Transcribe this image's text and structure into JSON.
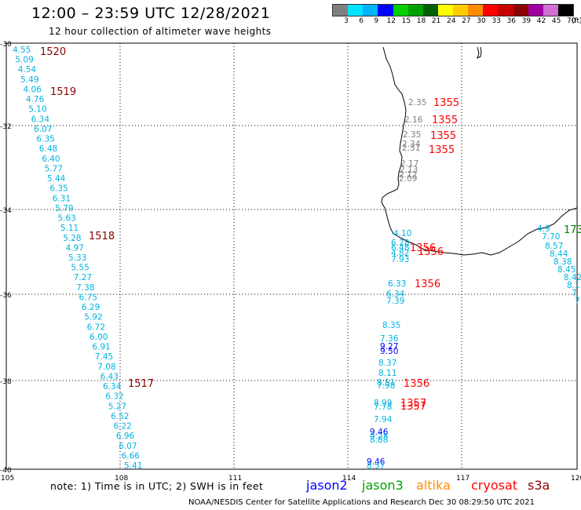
{
  "header": {
    "title": "12:00 – 23:59 UTC 12/28/2021",
    "subtitle": "12 hour collection of altimeter wave heights"
  },
  "legend": {
    "unit": "(ft)",
    "labels": [
      "3",
      "6",
      "9",
      "12",
      "15",
      "18",
      "21",
      "24",
      "27",
      "30",
      "33",
      "36",
      "39",
      "42",
      "45",
      "70"
    ],
    "colors": [
      "#7f7f7f",
      "#00e5ff",
      "#00b3ff",
      "#0000ff",
      "#00d000",
      "#00a000",
      "#006000",
      "#ffff00",
      "#ffcc00",
      "#ff8c00",
      "#ff0000",
      "#c80000",
      "#8b0000",
      "#a000a0",
      "#d070d0",
      "#000000"
    ]
  },
  "axes": {
    "lat_ticks": [
      "-30",
      "-32",
      "-34",
      "-36",
      "-38",
      "-40"
    ],
    "lon_ticks": [
      "105",
      "108",
      "111",
      "114",
      "117",
      "120"
    ]
  },
  "passes": [
    {
      "label": "1520",
      "color": "#8b0000"
    },
    {
      "label": "1519",
      "color": "#8b0000"
    },
    {
      "label": "1518",
      "color": "#8b0000"
    },
    {
      "label": "1517",
      "color": "#8b0000"
    },
    {
      "label": "1355",
      "color": "#ff0000"
    },
    {
      "label": "1355",
      "color": "#ff0000"
    },
    {
      "label": "1355",
      "color": "#ff0000"
    },
    {
      "label": "1355",
      "color": "#ff0000"
    },
    {
      "label": "1356",
      "color": "#ff0000"
    },
    {
      "label": "1356",
      "color": "#ff0000"
    },
    {
      "label": "1356",
      "color": "#ff0000"
    },
    {
      "label": "1356",
      "color": "#ff0000"
    },
    {
      "label": "1357",
      "color": "#ff0000"
    },
    {
      "label": "1357",
      "color": "#ff0000"
    },
    {
      "label": "173",
      "color": "#008000"
    }
  ],
  "track_values": {
    "west": [
      "4.55",
      "5.09",
      "4.54",
      "5.49",
      "4.06",
      "4.76",
      "5.10",
      "6.34",
      "6.07",
      "6.35",
      "6.48",
      "6.40",
      "5.77",
      "5.44",
      "6.35",
      "6.31",
      "5.79",
      "5.63",
      "5.11",
      "5.28",
      "4.97",
      "5.33",
      "5.55",
      "7.27",
      "7.38",
      "6.75",
      "6.29",
      "5.92",
      "6.72",
      "6.00",
      "6.91",
      "7.45",
      "7.08",
      "6.43",
      "6.34",
      "6.32",
      "5.27",
      "6.52",
      "6.22",
      "6.96",
      "6.07",
      "6.66",
      "5.41"
    ],
    "gray": [
      "2.35",
      "2.16",
      "2.35",
      "2.34",
      "2.31",
      "2.17",
      "2.13",
      "2.12",
      "2.09"
    ],
    "east_top": [
      "4.10",
      "6.28",
      "6.48",
      "4.82",
      "7.93"
    ],
    "east_mid": [
      "6.33",
      "6.34",
      "7.39"
    ],
    "east_low": [
      "8.35",
      "7.36",
      "9.27",
      "9.50",
      "8.37",
      "8.11",
      "8.51",
      "7.98"
    ],
    "east_bottom": [
      "8.99",
      "7.78",
      "7.94",
      "9.46",
      "9.28",
      "8.88",
      "9.46",
      "8.57"
    ],
    "right": [
      "4.9",
      "7.70",
      "8.57",
      "8.44",
      "8.38",
      "8.45",
      "8.42",
      "8.1",
      "7",
      "7"
    ]
  },
  "note": "note:  1) Time is in UTC;  2) SWH is in feet",
  "satellites": [
    {
      "name": "jason2",
      "color": "#0000ff"
    },
    {
      "name": "jason3",
      "color": "#00a000"
    },
    {
      "name": "altika",
      "color": "#ff8c00"
    },
    {
      "name": "cryosat",
      "color": "#ff0000"
    },
    {
      "name": "s3a",
      "color": "#8b0000"
    }
  ],
  "credit": "NOAA/NESDIS Center for Satellite Applications and Research     Dec 30 08:29:50 UTC 2021"
}
